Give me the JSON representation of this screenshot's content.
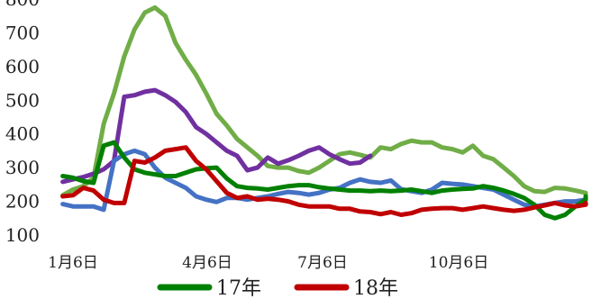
{
  "chart_data": {
    "type": "line",
    "ylim": [
      100,
      800
    ],
    "y_ticks": [
      100,
      200,
      300,
      400,
      500,
      600,
      700,
      800
    ],
    "x_tick_labels": [
      "1月6日",
      "4月6日",
      "7月6日",
      "10月6日"
    ],
    "x_tick_weeks": [
      0,
      13,
      26,
      39
    ],
    "grid": false,
    "legend_placement": "bottom",
    "series": [
      {
        "name": "",
        "color": "#70AD47",
        "values": [
          218,
          235,
          245,
          270,
          430,
          520,
          630,
          710,
          760,
          775,
          750,
          670,
          620,
          575,
          520,
          460,
          425,
          385,
          360,
          335,
          305,
          300,
          300,
          290,
          285,
          300,
          320,
          340,
          345,
          338,
          330,
          360,
          355,
          370,
          380,
          375,
          375,
          360,
          355,
          345,
          365,
          335,
          325,
          300,
          275,
          245,
          230,
          228,
          240,
          238,
          232,
          225,
          220
        ]
      },
      {
        "name": "",
        "color": "#7030A0",
        "values": [
          258,
          265,
          272,
          282,
          295,
          320,
          510,
          515,
          525,
          530,
          515,
          495,
          465,
          420,
          400,
          375,
          350,
          335,
          292,
          300,
          330,
          312,
          322,
          335,
          350,
          360,
          340,
          325,
          312,
          315,
          335
        ]
      },
      {
        "name": "",
        "color": "#4472C4",
        "values": [
          192,
          185,
          185,
          185,
          175,
          320,
          340,
          350,
          340,
          300,
          270,
          255,
          240,
          215,
          205,
          198,
          210,
          210,
          205,
          210,
          215,
          222,
          228,
          225,
          220,
          225,
          235,
          240,
          255,
          265,
          258,
          255,
          262,
          236,
          230,
          225,
          235,
          255,
          252,
          250,
          245,
          240,
          235,
          220,
          205,
          190,
          185,
          190,
          195,
          200,
          200,
          205
        ]
      },
      {
        "name": "17年",
        "color": "#008000",
        "values": [
          275,
          270,
          260,
          255,
          365,
          375,
          330,
          295,
          285,
          280,
          275,
          275,
          285,
          295,
          298,
          300,
          268,
          245,
          240,
          238,
          235,
          240,
          245,
          248,
          248,
          242,
          238,
          235,
          232,
          232,
          230,
          232,
          230,
          232,
          235,
          230,
          225,
          232,
          235,
          237,
          238,
          245,
          240,
          232,
          222,
          210,
          190,
          160,
          150,
          160,
          185,
          205,
          215
        ]
      },
      {
        "name": "18年",
        "color": "#C00000",
        "values": [
          215,
          218,
          240,
          232,
          205,
          195,
          195,
          320,
          315,
          330,
          350,
          355,
          360,
          320,
          295,
          260,
          225,
          210,
          215,
          205,
          208,
          205,
          200,
          190,
          185,
          185,
          185,
          178,
          178,
          170,
          168,
          162,
          168,
          160,
          165,
          175,
          178,
          180,
          180,
          175,
          180,
          185,
          180,
          175,
          172,
          175,
          182,
          188,
          195,
          188,
          185,
          190,
          195
        ]
      }
    ]
  }
}
